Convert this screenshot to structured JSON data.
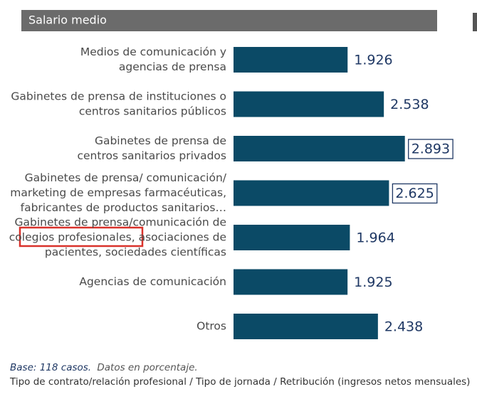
{
  "chart_data": {
    "type": "barh",
    "title": "Salario medio",
    "categories": [
      [
        "Medios de comunicación y",
        "agencias de prensa"
      ],
      [
        "Gabinetes de prensa de instituciones o",
        "centros sanitarios públicos"
      ],
      [
        "Gabinetes de prensa de",
        "centros sanitarios privados"
      ],
      [
        "Gabinetes de prensa/ comunicación/",
        "marketing de empresas farmacéuticas,",
        "fabricantes de productos sanitarios…"
      ],
      [
        "Gabinetes de prensa/comunicación de",
        "colegios profesionales, asociaciones de",
        "pacientes, sociedades científicas"
      ],
      [
        "Agencias de comunicación"
      ],
      [
        "Otros"
      ]
    ],
    "values": [
      1926,
      2538,
      2893,
      2625,
      1964,
      1925,
      2438
    ],
    "value_labels": [
      "1.926",
      "2.538",
      "2.893",
      "2.625",
      "1.964",
      "1.925",
      "2.438"
    ],
    "highlighted": [
      false,
      false,
      true,
      true,
      false,
      false,
      false
    ],
    "color": "#0b4a66",
    "footnote": {
      "base": "Base: 118 casos.",
      "note": "Datos en porcentaje.",
      "source": "Tipo de contrato/relación profesional / Tipo de jornada / Retribución (ingresos netos mensuales)"
    }
  }
}
